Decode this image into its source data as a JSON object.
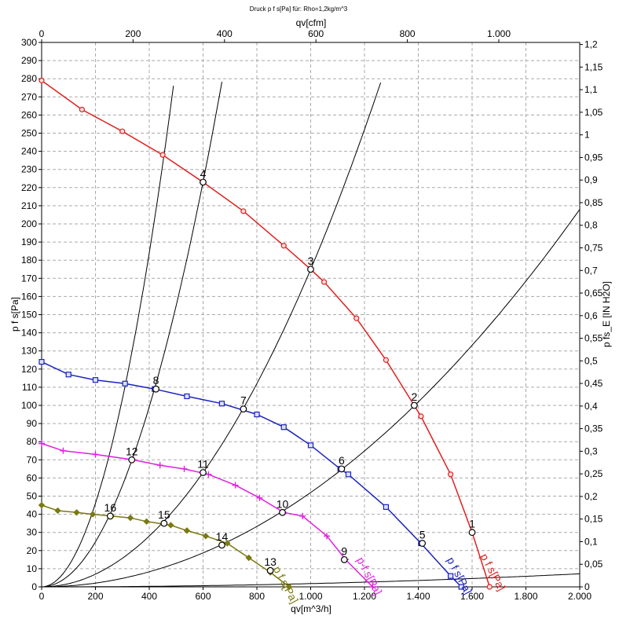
{
  "chart_data": {
    "type": "line",
    "title": "Druck p f s[Pa] für: Rho=1,2kg/m^3",
    "xlabel": "qv[m^3/h]",
    "ylabel": "p f s[Pa]",
    "top_xlabel": "qv[cfm]",
    "right_ylabel": "p fs_E [IN H2O]",
    "xlim": [
      0,
      2000
    ],
    "ylim": [
      0,
      300
    ],
    "top_xlim": [
      0,
      1177
    ],
    "right_ylim": [
      0,
      1.2045
    ],
    "grid": true,
    "x_ticks": [
      "0",
      "200",
      "400",
      "600",
      "800",
      "1.000",
      "1.200",
      "1.400",
      "1.600",
      "1.800",
      "2.000"
    ],
    "y_ticks": [
      "0",
      "10",
      "20",
      "30",
      "40",
      "50",
      "60",
      "70",
      "80",
      "90",
      "100",
      "110",
      "120",
      "130",
      "140",
      "150",
      "160",
      "170",
      "180",
      "190",
      "200",
      "210",
      "220",
      "230",
      "240",
      "250",
      "260",
      "270",
      "280",
      "290",
      "300"
    ],
    "top_ticks": [
      {
        "value": 0,
        "label": "0"
      },
      {
        "value": 200,
        "label": "200"
      },
      {
        "value": 400,
        "label": "400"
      },
      {
        "value": 600,
        "label": "600"
      },
      {
        "value": 800,
        "label": "800"
      },
      {
        "value": 1000,
        "label": "1.000"
      }
    ],
    "right_ticks": [
      {
        "value": 0,
        "label": "0"
      },
      {
        "value": 0.05,
        "label": "0,05"
      },
      {
        "value": 0.1,
        "label": "0,1"
      },
      {
        "value": 0.15,
        "label": "0,15"
      },
      {
        "value": 0.2,
        "label": "0,2"
      },
      {
        "value": 0.25,
        "label": "0,25"
      },
      {
        "value": 0.3,
        "label": "0,3"
      },
      {
        "value": 0.35,
        "label": "0,35"
      },
      {
        "value": 0.4,
        "label": "0,4"
      },
      {
        "value": 0.45,
        "label": "0,45"
      },
      {
        "value": 0.5,
        "label": "0,5"
      },
      {
        "value": 0.55,
        "label": "0,55"
      },
      {
        "value": 0.6,
        "label": "0,6"
      },
      {
        "value": 0.65,
        "label": "0,65"
      },
      {
        "value": 0.7,
        "label": "0,7"
      },
      {
        "value": 0.75,
        "label": "0,75"
      },
      {
        "value": 0.8,
        "label": "0,8"
      },
      {
        "value": 0.85,
        "label": "0,85"
      },
      {
        "value": 0.9,
        "label": "0,9"
      },
      {
        "value": 0.95,
        "label": "0,95"
      },
      {
        "value": 1.0,
        "label": "1"
      },
      {
        "value": 1.05,
        "label": "1,05"
      },
      {
        "value": 1.1,
        "label": "1,1"
      },
      {
        "value": 1.15,
        "label": "1,15"
      },
      {
        "value": 1.2,
        "label": "1,2"
      }
    ],
    "series": [
      {
        "name": "p f s[Pa]",
        "color": "#e02020",
        "marker": "circle",
        "x": [
          0,
          150,
          300,
          450,
          600,
          750,
          900,
          1000,
          1050,
          1170,
          1280,
          1410,
          1520,
          1600,
          1665
        ],
        "y": [
          279,
          263,
          251,
          238,
          223,
          207,
          188,
          175,
          168,
          148,
          125,
          94,
          62,
          30,
          0
        ],
        "label_at": [
          1630,
          17
        ]
      },
      {
        "name": "p f s[Pa]",
        "color": "#1a22c0",
        "marker": "square",
        "x": [
          0,
          100,
          200,
          310,
          420,
          540,
          670,
          800,
          900,
          1000,
          1110,
          1140,
          1280,
          1410,
          1520,
          1560
        ],
        "y": [
          124,
          117,
          114,
          112,
          109,
          105,
          101,
          95,
          88,
          78,
          65,
          62,
          44,
          24,
          6,
          0
        ],
        "label_at": [
          1505,
          15
        ]
      },
      {
        "name": "p-f s[Pa]",
        "color": "#e020e0",
        "marker": "plus",
        "x": [
          0,
          80,
          200,
          340,
          440,
          530,
          620,
          720,
          810,
          900,
          970,
          1060,
          1130,
          1230
        ],
        "y": [
          79,
          75,
          73,
          70,
          67,
          65,
          62,
          56,
          49,
          41,
          39,
          28,
          15,
          0
        ],
        "label_at": [
          1170,
          15
        ]
      },
      {
        "name": "p f s[Pa]",
        "color": "#7a7a10",
        "marker": "diamond",
        "x": [
          0,
          60,
          130,
          190,
          260,
          330,
          390,
          480,
          540,
          610,
          690,
          770,
          850,
          920
        ],
        "y": [
          45,
          42,
          41,
          40,
          39,
          38,
          36,
          34,
          31,
          28,
          24,
          16,
          8,
          0
        ],
        "label_at": [
          860,
          10
        ]
      }
    ],
    "system_curves": [
      {
        "k": 1.8e-06
      },
      {
        "k": 5.2e-05
      },
      {
        "k": 0.000175
      },
      {
        "k": 0.00062
      },
      {
        "k": 0.00115
      }
    ],
    "operating_points": [
      {
        "label": "1",
        "x": 1600,
        "y": 30
      },
      {
        "label": "2",
        "x": 1385,
        "y": 100
      },
      {
        "label": "3",
        "x": 1000,
        "y": 175
      },
      {
        "label": "4",
        "x": 600,
        "y": 223
      },
      {
        "label": "5",
        "x": 1415,
        "y": 24
      },
      {
        "label": "6",
        "x": 1115,
        "y": 65
      },
      {
        "label": "7",
        "x": 750,
        "y": 98
      },
      {
        "label": "8",
        "x": 425,
        "y": 109
      },
      {
        "label": "9",
        "x": 1125,
        "y": 15
      },
      {
        "label": "10",
        "x": 895,
        "y": 41
      },
      {
        "label": "11",
        "x": 600,
        "y": 63
      },
      {
        "label": "12",
        "x": 335,
        "y": 70
      },
      {
        "label": "13",
        "x": 850,
        "y": 9
      },
      {
        "label": "14",
        "x": 670,
        "y": 23
      },
      {
        "label": "15",
        "x": 455,
        "y": 35
      },
      {
        "label": "16",
        "x": 255,
        "y": 39
      }
    ]
  }
}
